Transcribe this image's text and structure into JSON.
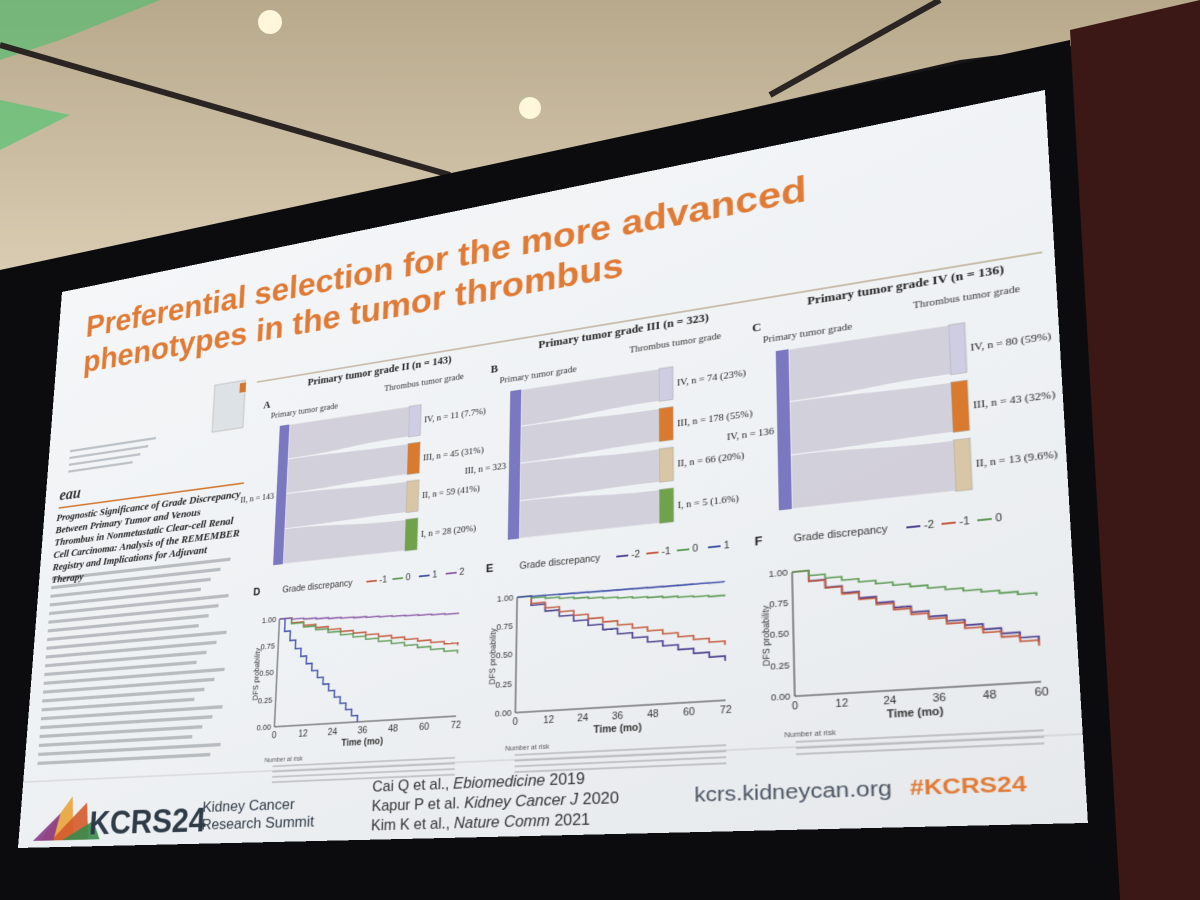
{
  "slide": {
    "title_lines": [
      "Preferential selection for the more advanced",
      "phenotypes in the tumor thrombus"
    ],
    "paper": {
      "logo": "eau",
      "title": "Prognostic Significance of Grade Discrepancy Between Primary Tumor and Venous Thrombus in Nonmetastatic Clear-cell Renal Cell Carcinoma: Analysis of the REMEMBER Registry and Implications for Adjuvant Therapy"
    },
    "sankeys": [
      {
        "letter": "A",
        "heading": "Primary tumor grade II (n = 143)",
        "left_axis": "Primary tumor grade",
        "right_axis": "Thrombus tumor grade",
        "source": "II, n = 143",
        "targets": [
          "IV, n = 11 (7.7%)",
          "III, n = 45 (31%)",
          "II, n = 59 (41%)",
          "I, n = 28 (20%)"
        ]
      },
      {
        "letter": "B",
        "heading": "Primary tumor grade III (n = 323)",
        "left_axis": "Primary tumor grade",
        "right_axis": "Thrombus tumor grade",
        "source": "III, n = 323",
        "targets": [
          "IV, n = 74 (23%)",
          "III, n = 178 (55%)",
          "II, n = 66 (20%)",
          "I, n = 5 (1.6%)"
        ]
      },
      {
        "letter": "C",
        "heading": "Primary tumor grade IV (n = 136)",
        "left_axis": "Primary tumor grade",
        "right_axis": "Thrombus tumor grade",
        "source": "IV, n = 136",
        "targets": [
          "IV, n = 80 (59%)",
          "III, n = 43 (32%)",
          "II, n = 13 (9.6%)"
        ]
      }
    ],
    "km": [
      {
        "letter": "D",
        "legend_title": "Grade discrepancy",
        "legend": [
          "-1",
          "0",
          "1",
          "2"
        ],
        "y_label": "DFS probability",
        "x_label": "Time (mo)",
        "yticks": [
          "1.00",
          "0.75",
          "0.50",
          "0.25",
          "0.00"
        ],
        "xticks": [
          0,
          12,
          24,
          36,
          48,
          60,
          72
        ],
        "risk_title": "Number at risk"
      },
      {
        "letter": "E",
        "legend_title": "Grade discrepancy",
        "legend": [
          "-2",
          "-1",
          "0",
          "1"
        ],
        "y_label": "DFS probability",
        "x_label": "Time (mo)",
        "yticks": [
          "1.00",
          "0.75",
          "0.50",
          "0.25",
          "0.00"
        ],
        "xticks": [
          0,
          12,
          24,
          36,
          48,
          60,
          72
        ],
        "risk_title": "Number at risk"
      },
      {
        "letter": "F",
        "legend_title": "Grade discrepancy",
        "legend": [
          "-2",
          "-1",
          "0"
        ],
        "y_label": "DFS probability",
        "x_label": "Time (mo)",
        "yticks": [
          "1.00",
          "0.75",
          "0.50",
          "0.25",
          "0.00"
        ],
        "xticks": [
          0,
          12,
          24,
          36,
          48,
          60
        ],
        "risk_title": "Number at risk"
      }
    ],
    "footer": {
      "logo": "KCRS24",
      "logo_line1": "Kidney Cancer",
      "logo_line2": "Research Summit",
      "references": [
        {
          "authors": "Cai Q et al., ",
          "journal": "Ebiomedicine",
          "year": " 2019"
        },
        {
          "authors": "Kapur P et al. ",
          "journal": "Kidney Cancer J",
          "year": " 2020"
        },
        {
          "authors": "Kim K et al., ",
          "journal": "Nature Comm",
          "year": " 2021"
        }
      ],
      "url": "kcrs.kidneycan.org",
      "hashtag": "#KCRS24"
    }
  }
}
